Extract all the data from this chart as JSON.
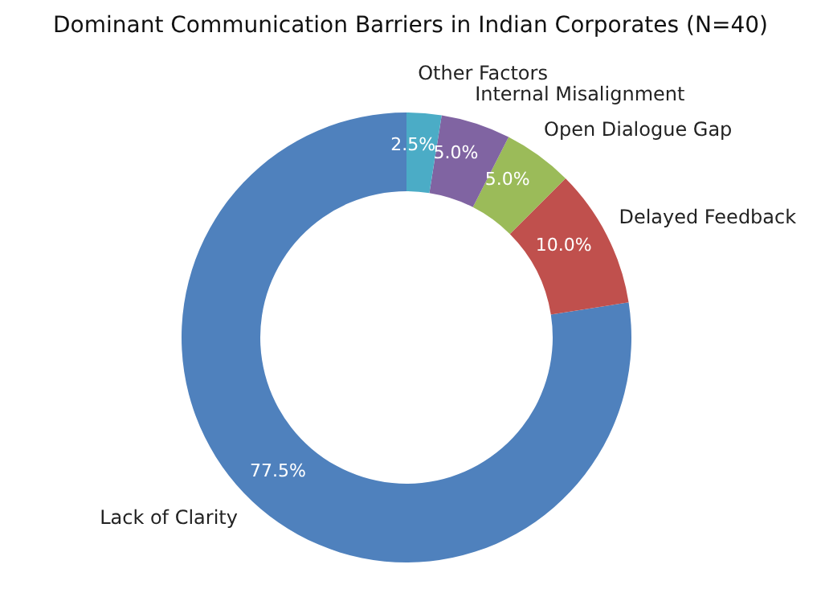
{
  "chart_data": {
    "type": "donut",
    "title": "Dominant Communication Barriers in Indian Corporates (N=40)",
    "categories": [
      "Lack of Clarity",
      "Delayed Feedback",
      "Open Dialogue Gap",
      "Internal Misalignment",
      "Other Factors"
    ],
    "values": [
      77.5,
      10.0,
      5.0,
      5.0,
      2.5
    ],
    "colors": [
      "#4f81bd",
      "#c0504d",
      "#9bbb59",
      "#8064a2",
      "#4bacc6"
    ],
    "value_labels": [
      "77.5%",
      "10.0%",
      "5.0%",
      "5.0%",
      "2.5%"
    ]
  }
}
